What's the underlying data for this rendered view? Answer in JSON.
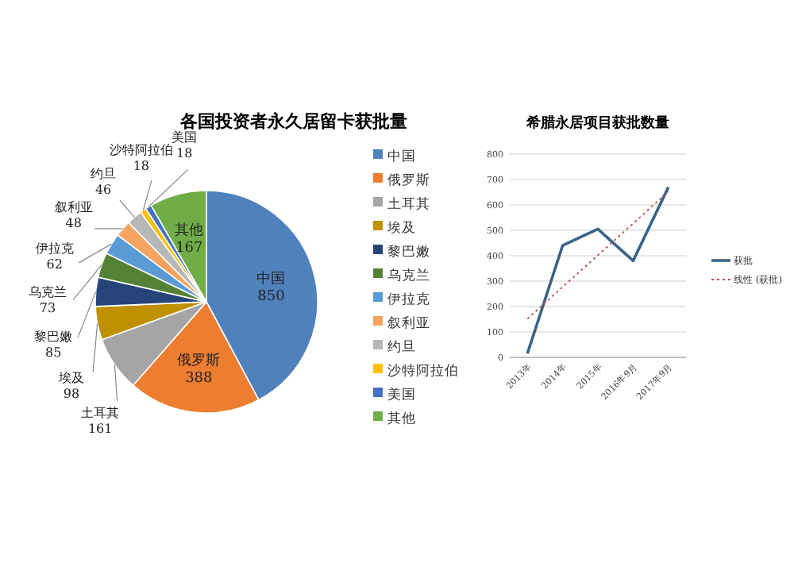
{
  "chart_data": [
    {
      "type": "pie",
      "title": "各国投资者永久居留卡获批量",
      "categories": [
        "中国",
        "俄罗斯",
        "土耳其",
        "埃及",
        "黎巴嫩",
        "乌克兰",
        "伊拉克",
        "叙利亚",
        "约旦",
        "沙特阿拉伯",
        "美国",
        "其他"
      ],
      "values": [
        850,
        388,
        161,
        98,
        85,
        73,
        62,
        48,
        46,
        18,
        18,
        167
      ],
      "colors": [
        "#4f81bd",
        "#ed7d31",
        "#a5a5a5",
        "#bf9000",
        "#264478",
        "#548235",
        "#5b9bd5",
        "#f4a460",
        "#b7b7b7",
        "#ffc000",
        "#4472c4",
        "#70ad47"
      ],
      "data_labels": true,
      "legend": "right"
    },
    {
      "type": "line",
      "title": "希腊永居项目获批数量",
      "categories": [
        "2013年",
        "2014年",
        "2015年",
        "2016年9月",
        "2017年9月"
      ],
      "series": [
        {
          "name": "获批",
          "color": "#3a6486",
          "values": [
            15,
            440,
            505,
            380,
            670
          ]
        },
        {
          "name": "线性 (获批)",
          "color": "#c0504d",
          "line_style": "dotted",
          "values": [
            152,
            277,
            402,
            527,
            652
          ]
        }
      ],
      "ylim": [
        0,
        800
      ],
      "yticks": [
        0,
        100,
        200,
        300,
        400,
        500,
        600,
        700,
        800
      ],
      "grid": "y",
      "legend": "right"
    }
  ]
}
